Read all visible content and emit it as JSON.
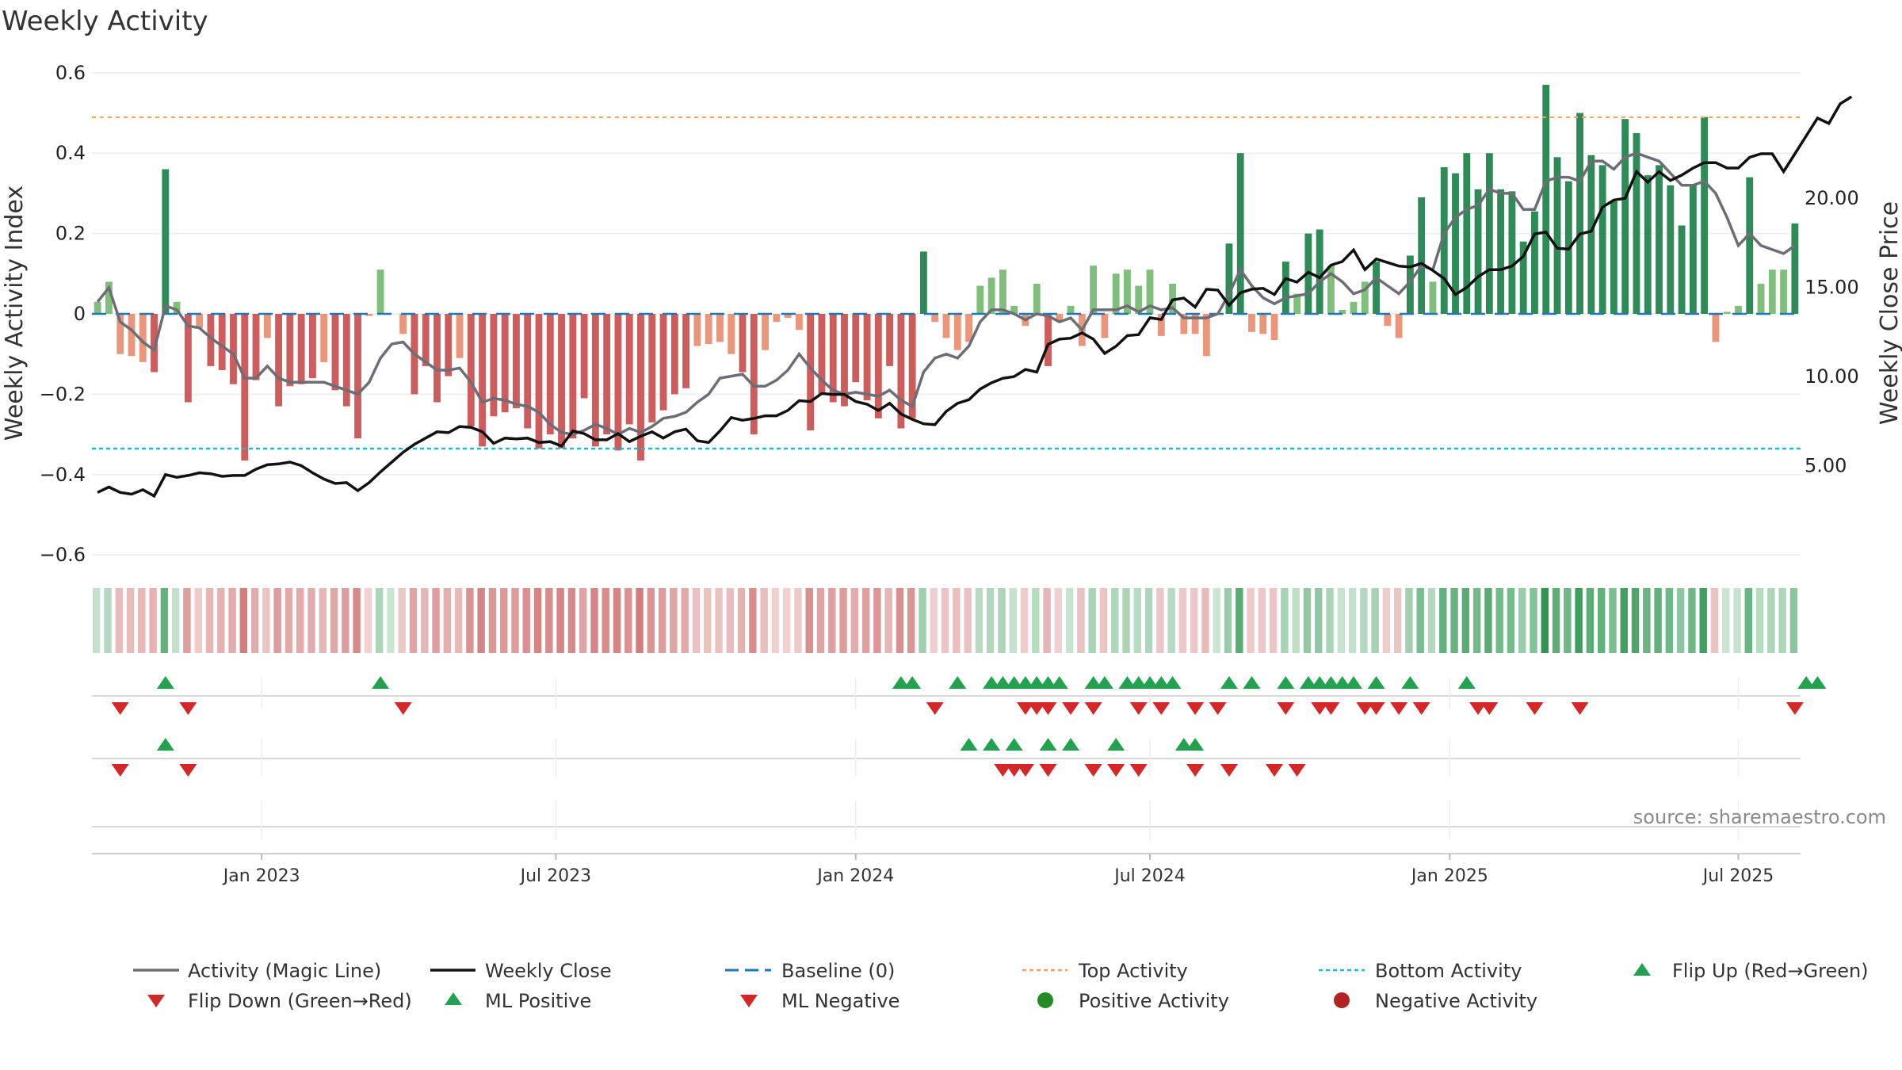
{
  "chart_data": {
    "type": "bar",
    "title": "Weekly Activity",
    "ylabel": "Weekly Activity Index",
    "y2label": "Weekly Close Price",
    "ylim": [
      -0.66,
      0.62
    ],
    "y2lim": [
      0,
      26.5
    ],
    "yticks": [
      0.6,
      0.4,
      0.2,
      0,
      -0.2,
      -0.4,
      -0.6
    ],
    "ytick_labels": [
      "0.6",
      "0.4",
      "0.2",
      "0",
      "−0.2",
      "−0.4",
      "−0.6"
    ],
    "y2ticks": [
      20,
      15,
      10,
      5
    ],
    "y2tick_labels": [
      "20.00",
      "15.00",
      "10.00",
      "5.00"
    ],
    "xticks": [
      {
        "label": "Jan 2023",
        "index": 15
      },
      {
        "label": "Jul 2023",
        "index": 41
      },
      {
        "label": "Jan 2024",
        "index": 67.5
      },
      {
        "label": "Jul 2024",
        "index": 93.5
      },
      {
        "label": "Jan 2025",
        "index": 120
      },
      {
        "label": "Jul 2025",
        "index": 145.5
      }
    ],
    "top_activity": 0.49,
    "bottom_activity": -0.335,
    "weekly_activity": [
      0.03,
      0.08,
      -0.1,
      -0.105,
      -0.12,
      -0.145,
      0.36,
      0.03,
      -0.22,
      -0.035,
      -0.13,
      -0.14,
      -0.175,
      -0.365,
      -0.165,
      -0.06,
      -0.23,
      -0.18,
      -0.175,
      -0.16,
      -0.12,
      -0.19,
      -0.23,
      -0.31,
      -0.005,
      0.11,
      0.0,
      -0.05,
      -0.2,
      -0.13,
      -0.22,
      -0.155,
      -0.11,
      -0.28,
      -0.33,
      -0.255,
      -0.245,
      -0.235,
      -0.285,
      -0.335,
      -0.3,
      -0.335,
      -0.31,
      -0.21,
      -0.33,
      -0.3,
      -0.34,
      -0.275,
      -0.365,
      -0.27,
      -0.24,
      -0.2,
      -0.185,
      -0.08,
      -0.075,
      -0.07,
      -0.1,
      -0.145,
      -0.3,
      -0.09,
      -0.02,
      -0.01,
      -0.04,
      -0.29,
      -0.2,
      -0.22,
      -0.23,
      -0.17,
      -0.215,
      -0.26,
      -0.13,
      -0.285,
      -0.26,
      0.155,
      -0.02,
      -0.06,
      -0.09,
      -0.07,
      0.07,
      0.09,
      0.11,
      0.02,
      -0.03,
      0.075,
      -0.13,
      -0.02,
      0.02,
      -0.08,
      0.12,
      -0.06,
      0.1,
      0.11,
      0.07,
      0.11,
      -0.055,
      0.075,
      -0.05,
      -0.05,
      -0.105,
      0.0,
      0.175,
      0.4,
      -0.045,
      -0.05,
      -0.065,
      0.13,
      0.05,
      0.2,
      0.21,
      0.12,
      0.01,
      0.03,
      0.08,
      0.13,
      -0.03,
      -0.06,
      0.145,
      0.29,
      0.08,
      0.365,
      0.35,
      0.4,
      0.31,
      0.4,
      0.31,
      0.305,
      0.18,
      0.255,
      0.57,
      0.39,
      0.33,
      0.5,
      0.395,
      0.37,
      0.28,
      0.485,
      0.45,
      0.345,
      0.37,
      0.32,
      0.22,
      0.32,
      0.49,
      -0.07,
      0.005,
      0.02,
      0.34,
      0.075,
      0.11,
      0.11,
      0.225
    ],
    "magic_line": [
      0.03,
      0.065,
      -0.02,
      -0.04,
      -0.07,
      -0.09,
      0.02,
      0.01,
      -0.03,
      -0.035,
      -0.06,
      -0.08,
      -0.1,
      -0.16,
      -0.16,
      -0.13,
      -0.16,
      -0.17,
      -0.17,
      -0.17,
      -0.17,
      -0.18,
      -0.19,
      -0.2,
      -0.17,
      -0.11,
      -0.075,
      -0.07,
      -0.1,
      -0.12,
      -0.14,
      -0.14,
      -0.135,
      -0.17,
      -0.22,
      -0.21,
      -0.215,
      -0.225,
      -0.23,
      -0.245,
      -0.275,
      -0.295,
      -0.3,
      -0.29,
      -0.275,
      -0.285,
      -0.3,
      -0.285,
      -0.295,
      -0.28,
      -0.26,
      -0.255,
      -0.245,
      -0.22,
      -0.2,
      -0.16,
      -0.155,
      -0.15,
      -0.18,
      -0.18,
      -0.165,
      -0.14,
      -0.1,
      -0.135,
      -0.165,
      -0.19,
      -0.2,
      -0.195,
      -0.2,
      -0.205,
      -0.19,
      -0.215,
      -0.23,
      -0.145,
      -0.11,
      -0.1,
      -0.11,
      -0.08,
      -0.02,
      0.01,
      0.01,
      0.0,
      -0.015,
      0.0,
      -0.005,
      -0.02,
      -0.01,
      -0.04,
      0.01,
      0.01,
      0.01,
      0.02,
      0.005,
      0.02,
      0.01,
      0.015,
      -0.01,
      -0.01,
      -0.01,
      0.0,
      0.05,
      0.11,
      0.07,
      0.04,
      0.025,
      0.04,
      0.045,
      0.05,
      0.08,
      0.1,
      0.08,
      0.05,
      0.06,
      0.09,
      0.07,
      0.05,
      0.08,
      0.12,
      0.11,
      0.2,
      0.24,
      0.26,
      0.27,
      0.31,
      0.3,
      0.3,
      0.26,
      0.26,
      0.33,
      0.34,
      0.34,
      0.33,
      0.38,
      0.38,
      0.36,
      0.39,
      0.4,
      0.39,
      0.38,
      0.35,
      0.32,
      0.32,
      0.33,
      0.3,
      0.24,
      0.17,
      0.2,
      0.17,
      0.16,
      0.15,
      0.17
    ],
    "weekly_close": [
      3.5,
      3.8,
      3.5,
      3.4,
      3.65,
      3.3,
      4.5,
      4.35,
      4.45,
      4.6,
      4.55,
      4.4,
      4.45,
      4.45,
      4.8,
      5.05,
      5.1,
      5.2,
      5.0,
      4.6,
      4.25,
      4.0,
      4.05,
      3.6,
      4.05,
      4.65,
      5.2,
      5.75,
      6.2,
      6.55,
      6.9,
      6.85,
      7.2,
      7.15,
      6.9,
      6.25,
      6.55,
      6.5,
      6.55,
      6.3,
      6.35,
      6.1,
      6.95,
      6.8,
      6.45,
      6.45,
      6.8,
      6.35,
      6.65,
      6.9,
      6.55,
      6.9,
      7.05,
      6.4,
      6.3,
      6.95,
      7.7,
      7.55,
      7.65,
      7.8,
      7.8,
      8.1,
      8.65,
      8.6,
      9.05,
      9.0,
      9.0,
      8.6,
      8.45,
      8.1,
      8.5,
      7.9,
      7.6,
      7.35,
      7.3,
      8.05,
      8.5,
      8.7,
      9.3,
      9.65,
      9.9,
      10.0,
      10.4,
      10.25,
      11.8,
      12.1,
      12.15,
      12.45,
      12.1,
      11.3,
      11.7,
      12.3,
      12.35,
      13.3,
      13.2,
      14.3,
      14.4,
      13.9,
      14.9,
      14.85,
      14.0,
      14.7,
      14.9,
      14.95,
      14.6,
      15.5,
      15.3,
      15.85,
      15.55,
      16.25,
      16.45,
      17.1,
      16.0,
      16.6,
      16.4,
      16.2,
      16.15,
      16.35,
      15.95,
      15.5,
      14.6,
      15.0,
      15.6,
      16.0,
      16.0,
      16.2,
      16.75,
      18.0,
      18.1,
      17.2,
      17.15,
      18.0,
      18.15,
      19.5,
      19.9,
      20.0,
      21.5,
      20.9,
      21.5,
      21.0,
      21.3,
      21.7,
      22.0,
      22.0,
      21.7,
      21.7,
      22.3,
      22.5,
      22.5,
      21.5,
      22.5,
      23.5,
      24.5,
      24.2,
      25.3,
      25.7
    ]
  },
  "strip": {
    "flip_up": {
      "label": "Flip Up (Red→Green)",
      "color": "#22a24f",
      "weeks": [
        6,
        25,
        71,
        72,
        76,
        79,
        80,
        81,
        82,
        83,
        84,
        85,
        88,
        89,
        91,
        92,
        93,
        94,
        95,
        100,
        102,
        105,
        107,
        108,
        109,
        110,
        111,
        113,
        116,
        121,
        151,
        152
      ]
    },
    "flip_down": {
      "label": "Flip Down (Green→Red)",
      "color": "#d62728",
      "weeks": [
        2,
        8,
        27,
        74,
        82,
        83,
        84,
        86,
        88,
        92,
        94,
        97,
        99,
        105,
        108,
        109,
        112,
        113,
        115,
        117,
        122,
        123,
        127,
        131,
        150
      ]
    },
    "ml_positive": {
      "label": "ML Positive",
      "color": "#22a24f",
      "weeks": [
        6,
        77,
        79,
        81,
        84,
        86,
        90,
        96,
        97
      ]
    },
    "ml_negative": {
      "label": "ML Negative",
      "color": "#d62728",
      "weeks": [
        2,
        8,
        80,
        81,
        82,
        84,
        88,
        90,
        92,
        97,
        100,
        104,
        106
      ]
    }
  },
  "legend": {
    "magic_line": {
      "label": "Activity (Magic Line)",
      "color": "#6d6d75"
    },
    "weekly_close": {
      "label": "Weekly Close",
      "color": "#111111"
    },
    "baseline": {
      "label": "Baseline (0)",
      "color": "#1f77b4"
    },
    "top_activity": {
      "label": "Top Activity",
      "color": "#f4a261"
    },
    "bottom_activity": {
      "label": "Bottom Activity",
      "color": "#17becf"
    },
    "flip_up": {
      "label": "Flip Up (Red→Green)",
      "color": "#22a24f"
    },
    "flip_down": {
      "label": "Flip Down (Green→Red)",
      "color": "#d62728"
    },
    "ml_positive": {
      "label": "ML Positive",
      "color": "#22a24f"
    },
    "ml_negative": {
      "label": "ML Negative",
      "color": "#d62728"
    },
    "positive_activity": {
      "label": "Positive Activity",
      "color": "#228b22"
    },
    "negative_activity": {
      "label": "Negative Activity",
      "color": "#b22222"
    }
  },
  "colors": {
    "pos_strong": "#2e8b57",
    "pos_light": "#7fbf7b",
    "neg_strong": "#cd5c5c",
    "neg_light": "#e9967a"
  },
  "source": "source: sharemaestro.com"
}
